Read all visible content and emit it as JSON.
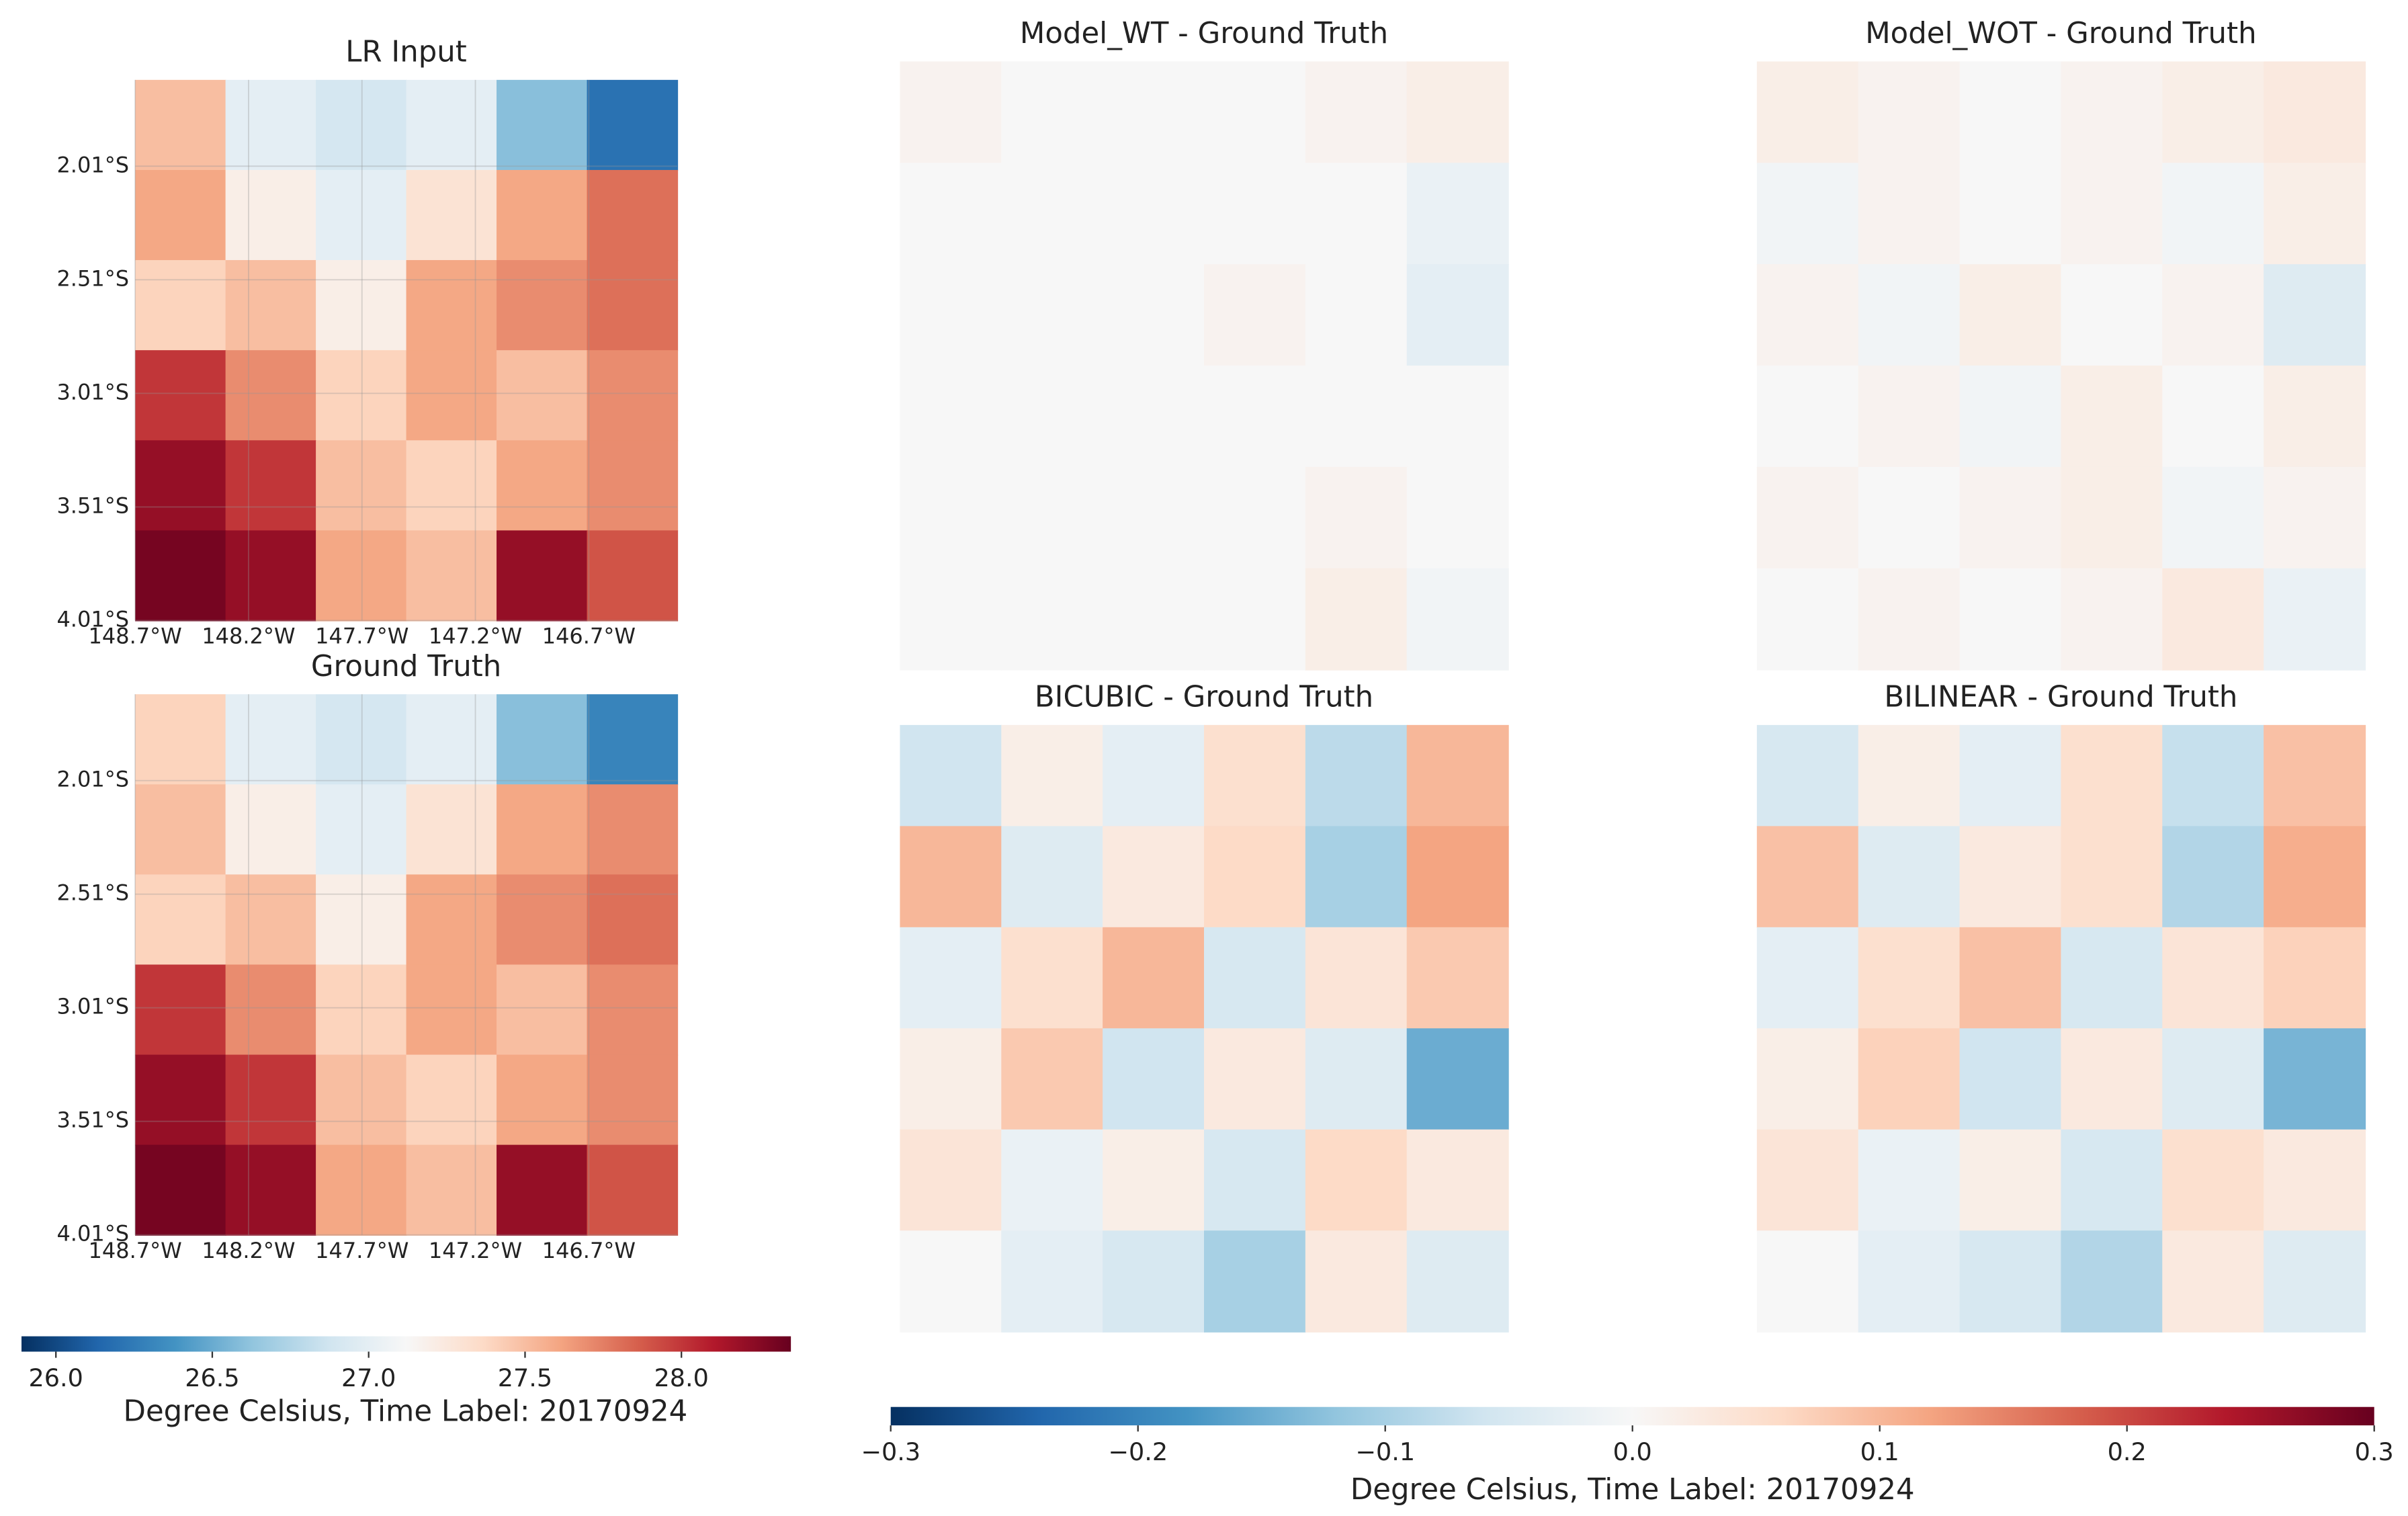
{
  "chart_data": [
    {
      "type": "heatmap",
      "colorbar": {
        "cmap": "RdBu_r",
        "vlim": [
          25.89,
          28.35
        ],
        "ticks": [
          {
            "value": 26,
            "label": "26.0"
          },
          26.5,
          {
            "value": 27,
            "label": "27.0"
          },
          27.5,
          {
            "value": 28,
            "label": "28.0"
          }
        ],
        "label": "Degree Celsius, Time Label: 20170924"
      },
      "panels": [
        {
          "title": "LR Input",
          "grid": true,
          "xlim": [
            -148.7,
            -146.31
          ],
          "ylim": [
            -4.01,
            -1.63
          ],
          "xticks": [
            {
              "value": -148.7,
              "label": "148.7°W"
            },
            {
              "value": -148.2,
              "label": "148.2°W"
            },
            {
              "value": -147.7,
              "label": "147.7°W"
            },
            {
              "value": -147.2,
              "label": "147.2°W"
            },
            {
              "value": -146.7,
              "label": "146.7°W"
            }
          ],
          "yticks": [
            {
              "value": -2.01,
              "label": "2.01°S"
            },
            {
              "value": -2.51,
              "label": "2.51°S"
            },
            {
              "value": -3.01,
              "label": "3.01°S"
            },
            {
              "value": -3.51,
              "label": "3.51°S"
            },
            {
              "value": -4.01,
              "label": "4.01°S"
            }
          ],
          "z": [
            [
              27.5,
              27.0,
              26.9,
              27.0,
              26.6,
              26.2
            ],
            [
              27.6,
              27.2,
              27.0,
              27.3,
              27.6,
              27.8
            ],
            [
              27.4,
              27.5,
              27.2,
              27.6,
              27.7,
              27.8
            ],
            [
              28.0,
              27.7,
              27.4,
              27.6,
              27.5,
              27.7
            ],
            [
              28.2,
              28.0,
              27.5,
              27.4,
              27.6,
              27.7
            ],
            [
              28.3,
              28.2,
              27.6,
              27.5,
              28.2,
              27.9
            ]
          ]
        },
        {
          "title": "Ground Truth",
          "grid": true,
          "xlim": [
            -148.7,
            -146.31
          ],
          "ylim": [
            -4.01,
            -1.63
          ],
          "xticks": [
            {
              "value": -148.7,
              "label": "148.7°W"
            },
            {
              "value": -148.2,
              "label": "148.2°W"
            },
            {
              "value": -147.7,
              "label": "147.7°W"
            },
            {
              "value": -147.2,
              "label": "147.2°W"
            },
            {
              "value": -146.7,
              "label": "146.7°W"
            }
          ],
          "yticks": [
            {
              "value": -2.01,
              "label": "2.01°S"
            },
            {
              "value": -2.51,
              "label": "2.51°S"
            },
            {
              "value": -3.01,
              "label": "3.01°S"
            },
            {
              "value": -3.51,
              "label": "3.51°S"
            },
            {
              "value": -4.01,
              "label": "4.01°S"
            }
          ],
          "z": [
            [
              27.4,
              27.0,
              26.9,
              27.0,
              26.6,
              26.3
            ],
            [
              27.5,
              27.2,
              27.0,
              27.3,
              27.6,
              27.7
            ],
            [
              27.4,
              27.5,
              27.2,
              27.6,
              27.7,
              27.8
            ],
            [
              28.0,
              27.7,
              27.4,
              27.6,
              27.5,
              27.7
            ],
            [
              28.2,
              28.0,
              27.5,
              27.4,
              27.6,
              27.7
            ],
            [
              28.3,
              28.2,
              27.6,
              27.5,
              28.2,
              27.9
            ]
          ]
        }
      ]
    },
    {
      "type": "heatmap",
      "colorbar": {
        "cmap": "RdBu_r",
        "vlim": [
          -0.3,
          0.3
        ],
        "ticks": [
          {
            "value": -0.3,
            "label": "−0.3"
          },
          {
            "value": -0.2,
            "label": "−0.2"
          },
          {
            "value": -0.1,
            "label": "−0.1"
          },
          {
            "value": 0,
            "label": "0.0"
          },
          0.1,
          0.2,
          0.3
        ],
        "label": "Degree Celsius, Time Label: 20170924"
      },
      "panels": [
        {
          "title": "Model_WT - Ground Truth",
          "z": [
            [
              0.01,
              0.0,
              0.0,
              0.0,
              0.01,
              0.02
            ],
            [
              0.0,
              0.0,
              0.0,
              0.0,
              0.0,
              -0.02
            ],
            [
              0.0,
              0.0,
              0.0,
              0.01,
              0.0,
              -0.03
            ],
            [
              0.0,
              0.0,
              0.0,
              0.0,
              0.0,
              0.0
            ],
            [
              0.0,
              0.0,
              0.0,
              0.0,
              0.01,
              0.0
            ],
            [
              0.0,
              0.0,
              0.0,
              0.0,
              0.02,
              -0.01
            ]
          ]
        },
        {
          "title": "Model_WOT - Ground Truth",
          "z": [
            [
              0.02,
              0.01,
              0.0,
              0.01,
              0.02,
              0.03
            ],
            [
              -0.01,
              0.01,
              0.0,
              0.01,
              -0.01,
              0.02
            ],
            [
              0.01,
              -0.01,
              0.02,
              0.0,
              0.01,
              -0.04
            ],
            [
              0.0,
              0.01,
              -0.01,
              0.02,
              0.0,
              0.02
            ],
            [
              0.01,
              0.0,
              0.01,
              0.02,
              -0.01,
              0.01
            ],
            [
              0.0,
              0.01,
              0.0,
              0.01,
              0.03,
              -0.02
            ]
          ]
        },
        {
          "title": "BICUBIC - Ground Truth",
          "z": [
            [
              -0.06,
              0.02,
              -0.03,
              0.05,
              -0.08,
              0.1
            ],
            [
              0.1,
              -0.04,
              0.03,
              0.06,
              -0.1,
              0.12
            ],
            [
              -0.03,
              0.05,
              0.1,
              -0.05,
              0.04,
              0.08
            ],
            [
              0.02,
              0.08,
              -0.06,
              0.03,
              -0.04,
              -0.15
            ],
            [
              0.04,
              -0.02,
              0.02,
              -0.05,
              0.06,
              0.03
            ],
            [
              0.0,
              -0.03,
              -0.05,
              -0.1,
              0.03,
              -0.04
            ]
          ]
        },
        {
          "title": "BILINEAR - Ground Truth",
          "z": [
            [
              -0.05,
              0.02,
              -0.03,
              0.05,
              -0.07,
              0.09
            ],
            [
              0.09,
              -0.04,
              0.03,
              0.05,
              -0.09,
              0.11
            ],
            [
              -0.03,
              0.05,
              0.09,
              -0.05,
              0.04,
              0.07
            ],
            [
              0.02,
              0.07,
              -0.06,
              0.03,
              -0.04,
              -0.14
            ],
            [
              0.04,
              -0.02,
              0.02,
              -0.05,
              0.05,
              0.03
            ],
            [
              0.0,
              -0.03,
              -0.05,
              -0.09,
              0.03,
              -0.04
            ]
          ]
        }
      ]
    }
  ]
}
